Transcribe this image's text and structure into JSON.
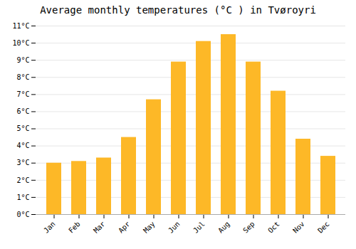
{
  "chart_data": {
    "type": "bar",
    "title": "Average monthly temperatures (°C ) in Tvøroyri",
    "categories": [
      "Jan",
      "Feb",
      "Mar",
      "Apr",
      "May",
      "Jun",
      "Jul",
      "Aug",
      "Sep",
      "Oct",
      "Nov",
      "Dec"
    ],
    "values": [
      3.0,
      3.1,
      3.3,
      4.5,
      6.7,
      8.9,
      10.1,
      10.5,
      8.9,
      7.2,
      4.4,
      3.4
    ],
    "color": "#FDB827",
    "ylim": [
      0,
      11
    ],
    "yticks": [
      {
        "value": 0,
        "label": "0°C"
      },
      {
        "value": 1,
        "label": "1°C"
      },
      {
        "value": 2,
        "label": "2°C"
      },
      {
        "value": 3,
        "label": "3°C"
      },
      {
        "value": 4,
        "label": "4°C"
      },
      {
        "value": 5,
        "label": "5°C"
      },
      {
        "value": 6,
        "label": "6°C"
      },
      {
        "value": 7,
        "label": "7°C"
      },
      {
        "value": 8,
        "label": "8°C"
      },
      {
        "value": 9,
        "label": "9°C"
      },
      {
        "value": 10,
        "label": "10°C"
      },
      {
        "value": 11,
        "label": "11°C"
      }
    ],
    "grid": true
  }
}
